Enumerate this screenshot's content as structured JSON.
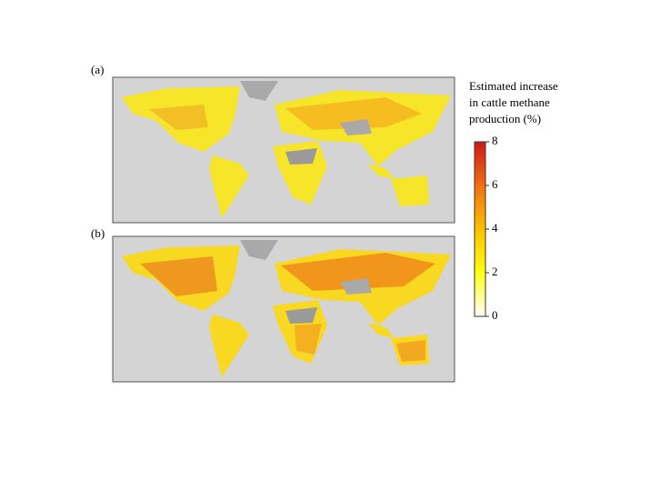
{
  "panels": [
    {
      "label": "(a)"
    },
    {
      "label": "(b)"
    }
  ],
  "colorbar": {
    "title": [
      "Estimated increase",
      "in cattle methane",
      "production (%)"
    ],
    "lim": [
      0,
      8
    ],
    "ticks": [
      0,
      2,
      4,
      6,
      8
    ],
    "colors": [
      "#ffffff",
      "#ffff10",
      "#ffc000",
      "#f07010",
      "#d01818"
    ]
  }
}
